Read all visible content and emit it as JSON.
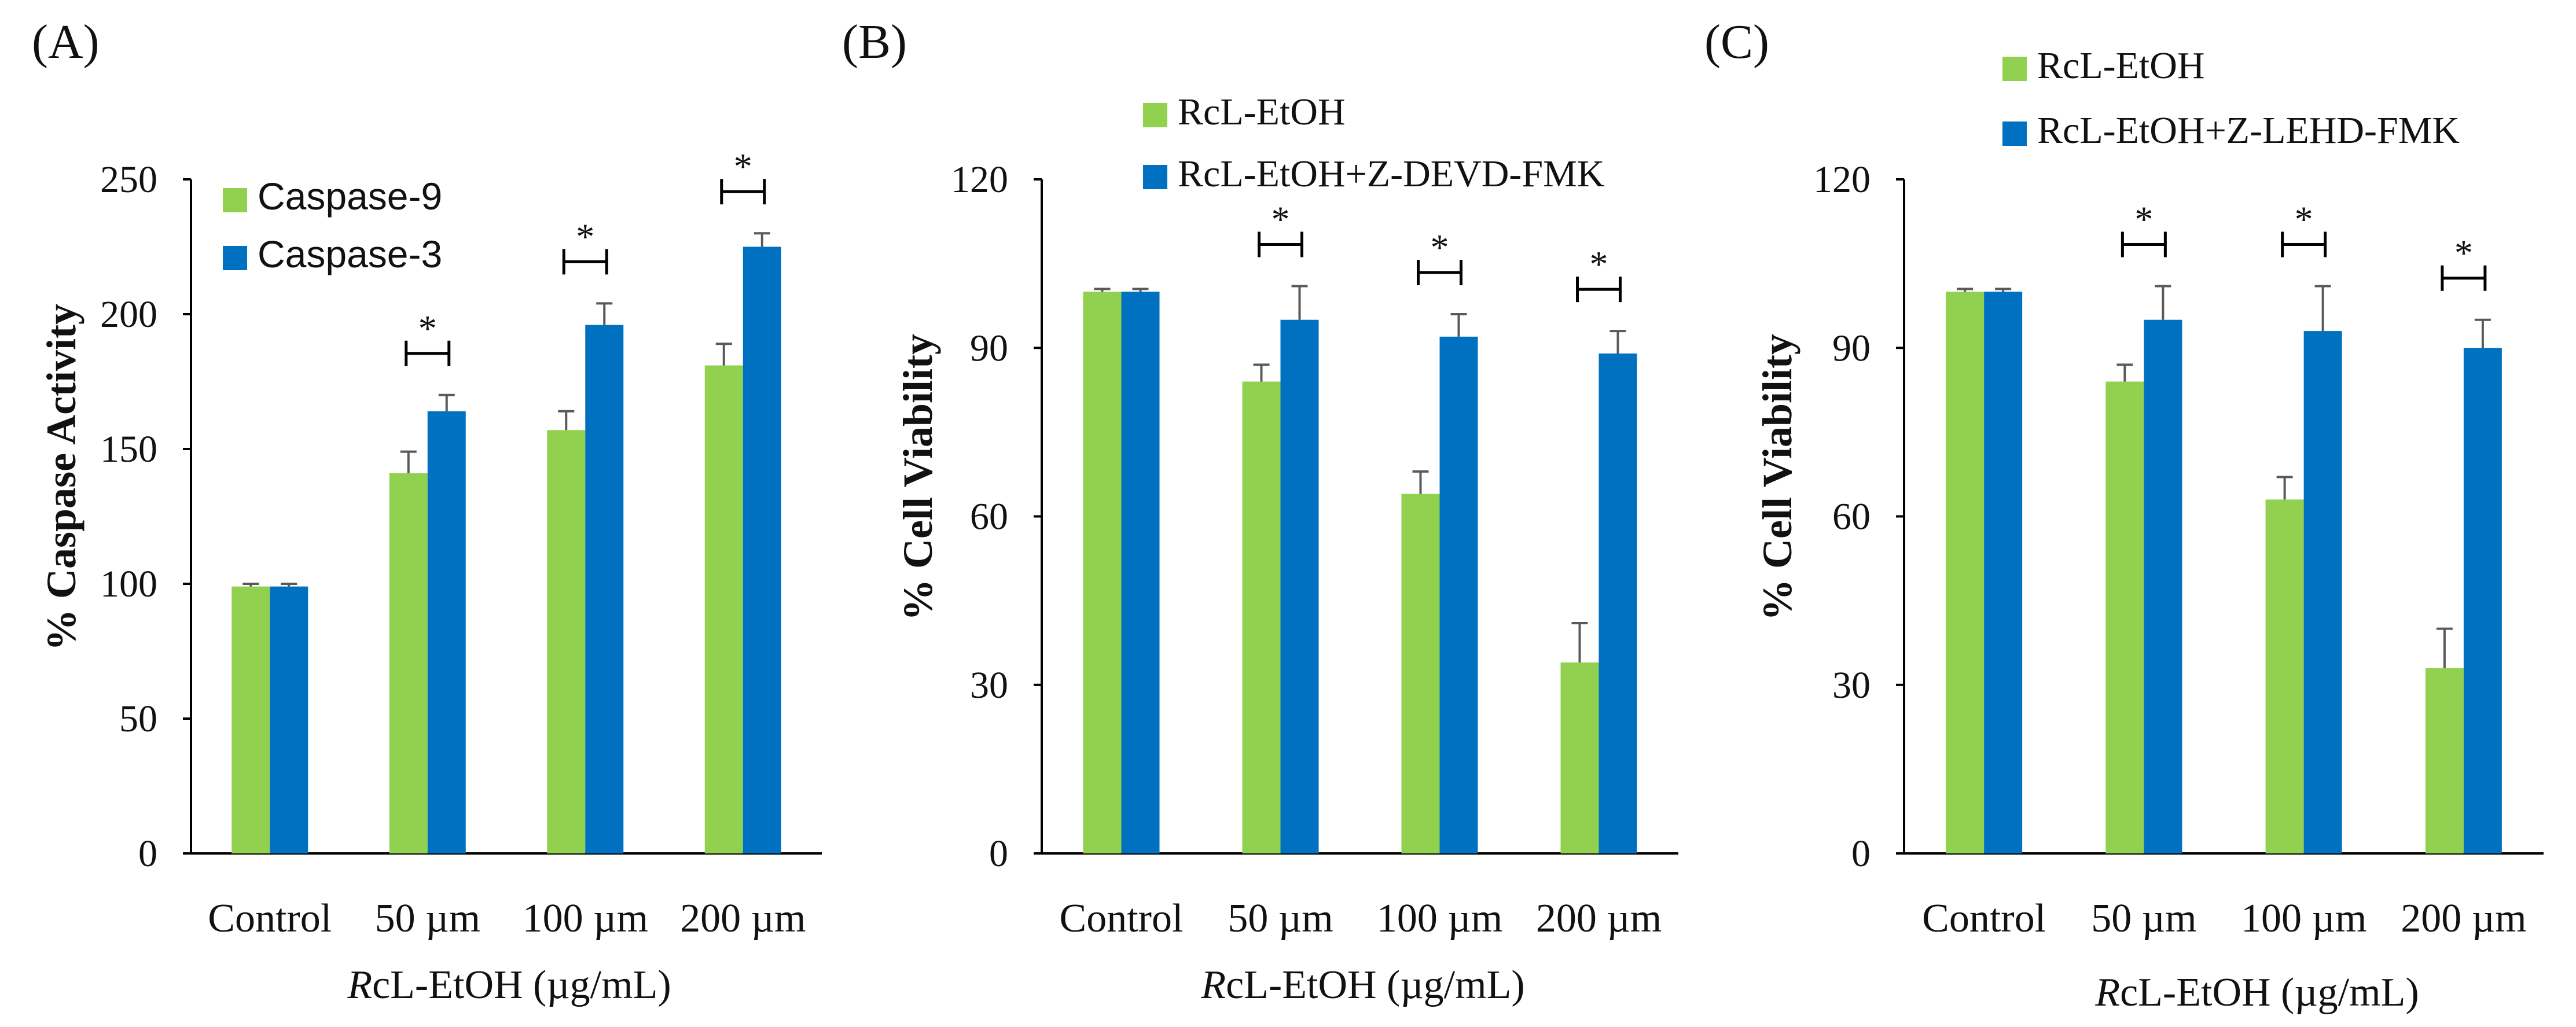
{
  "colors": {
    "green": "#92D050",
    "blue": "#0070C0",
    "axis": "#000000",
    "error": "#595959"
  },
  "chart_data": [
    {
      "type": "bar",
      "panel": "(A)",
      "categories": [
        "Control",
        "50 µm",
        "100 µm",
        "200 µm"
      ],
      "series": [
        {
          "name": "Caspase-9",
          "values": [
            99,
            141,
            157,
            181
          ],
          "errors": [
            1,
            8,
            7,
            8
          ]
        },
        {
          "name": "Caspase-3",
          "values": [
            99,
            164,
            196,
            225
          ],
          "errors": [
            1,
            6,
            8,
            5
          ]
        }
      ],
      "ylabel": "% Caspase Activity",
      "xlabel_italic": "R",
      "xlabel_rest": "cL-EtOH (µg/mL)",
      "ylim": [
        0,
        250
      ],
      "yticks": [
        0,
        50,
        100,
        150,
        200,
        250
      ],
      "significance": [
        {
          "category": 1,
          "label": "*"
        },
        {
          "category": 2,
          "label": "*"
        },
        {
          "category": 3,
          "label": "*"
        }
      ],
      "legend_position": "top-left"
    },
    {
      "type": "bar",
      "panel": "(B)",
      "categories": [
        "Control",
        "50 µm",
        "100 µm",
        "200 µm"
      ],
      "series": [
        {
          "name": "RcL-EtOH",
          "values": [
            100,
            84,
            64,
            34
          ],
          "errors": [
            0.5,
            3,
            4,
            7
          ]
        },
        {
          "name": "RcL-EtOH+Z-DEVD-FMK",
          "values": [
            100,
            95,
            92,
            89
          ],
          "errors": [
            0.5,
            6,
            4,
            4
          ]
        }
      ],
      "ylabel": "% Cell Viability",
      "xlabel_italic": "R",
      "xlabel_rest": "cL-EtOH (µg/mL)",
      "ylim": [
        0,
        120
      ],
      "yticks": [
        0,
        30,
        60,
        90,
        120
      ],
      "significance": [
        {
          "category": 1,
          "label": "*"
        },
        {
          "category": 2,
          "label": "*"
        },
        {
          "category": 3,
          "label": "*"
        }
      ],
      "legend_position": "top"
    },
    {
      "type": "bar",
      "panel": "(C)",
      "categories": [
        "Control",
        "50 µm",
        "100 µm",
        "200 µm"
      ],
      "series": [
        {
          "name": "RcL-EtOH",
          "values": [
            100,
            84,
            63,
            33
          ],
          "errors": [
            0.5,
            3,
            4,
            7
          ]
        },
        {
          "name": "RcL-EtOH+Z-LEHD-FMK",
          "values": [
            100,
            95,
            93,
            90
          ],
          "errors": [
            0.5,
            6,
            8,
            5
          ]
        }
      ],
      "ylabel": "% Cell Viability",
      "xlabel_italic": "R",
      "xlabel_rest": "cL-EtOH (µg/mL)",
      "ylim": [
        0,
        120
      ],
      "yticks": [
        0,
        30,
        60,
        90,
        120
      ],
      "significance": [
        {
          "category": 1,
          "label": "*"
        },
        {
          "category": 2,
          "label": "*"
        },
        {
          "category": 3,
          "label": "*"
        }
      ],
      "legend_position": "top"
    }
  ]
}
